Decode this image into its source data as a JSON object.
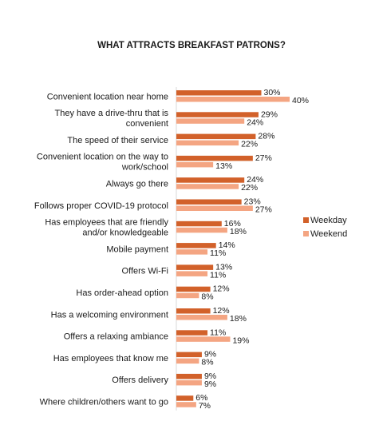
{
  "chart_data": {
    "type": "bar",
    "orientation": "horizontal",
    "title": "WHAT ATTRACTS BREAKFAST PATRONS?",
    "categories": [
      "Convenient location near home",
      "They have a drive-thru that is convenient",
      "The speed of their service",
      "Convenient location on the way to work/school",
      "Always go there",
      "Follows proper COVID-19 protocol",
      "Has employees that are friendly and/or knowledgeable",
      "Mobile payment",
      "Offers Wi-Fi",
      "Has order-ahead option",
      "Has a welcoming environment",
      "Offers a relaxing ambiance",
      "Has employees that know me",
      "Offers delivery",
      "Where children/others want to go"
    ],
    "category_lines": [
      [
        "Convenient location near home"
      ],
      [
        "They have a drive-thru that is",
        "convenient"
      ],
      [
        "The speed of their service"
      ],
      [
        "Convenient location on the way to",
        "work/school"
      ],
      [
        "Always go there"
      ],
      [
        "Follows proper COVID-19 protocol"
      ],
      [
        "Has employees that are friendly",
        "and/or knowledgeable"
      ],
      [
        "Mobile payment"
      ],
      [
        "Offers Wi-Fi"
      ],
      [
        "Has order-ahead option"
      ],
      [
        "Has a welcoming environment"
      ],
      [
        "Offers a relaxing ambiance"
      ],
      [
        "Has employees that know me"
      ],
      [
        "Offers delivery"
      ],
      [
        "Where children/others want to go"
      ]
    ],
    "series": [
      {
        "name": "Weekday",
        "color": "#d2612a",
        "values": [
          30,
          29,
          28,
          27,
          24,
          23,
          16,
          14,
          13,
          12,
          12,
          11,
          9,
          9,
          6
        ]
      },
      {
        "name": "Weekend",
        "color": "#f4a582",
        "values": [
          40,
          24,
          22,
          13,
          22,
          27,
          18,
          11,
          11,
          8,
          18,
          19,
          8,
          9,
          7
        ]
      }
    ],
    "value_suffix": "%",
    "xlim": [
      0,
      40
    ],
    "grid": false,
    "legend": "right"
  }
}
